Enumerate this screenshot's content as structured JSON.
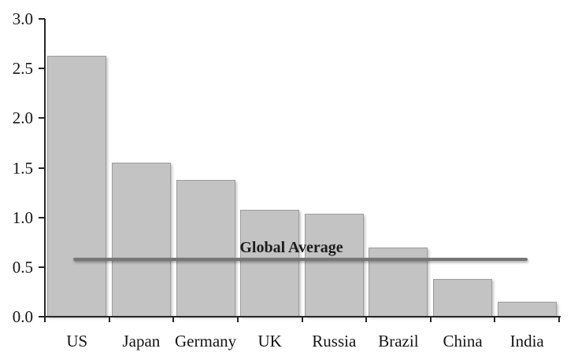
{
  "chart_data": {
    "type": "bar",
    "title": "",
    "xlabel": "",
    "ylabel": "",
    "categories": [
      "US",
      "Japan",
      "Germany",
      "UK",
      "Russia",
      "Brazil",
      "China",
      "India"
    ],
    "values": [
      2.63,
      1.55,
      1.38,
      1.08,
      1.04,
      0.7,
      0.38,
      0.15
    ],
    "ylim": [
      0,
      3.0
    ],
    "yticks": [
      0.0,
      0.5,
      1.0,
      1.5,
      2.0,
      2.5,
      3.0
    ],
    "ytick_labels": [
      "0.0",
      "0.5",
      "1.0",
      "1.5",
      "2.0",
      "2.5",
      "3.0"
    ],
    "grid": false,
    "legend": false,
    "reference_line": {
      "label": "Global Average",
      "value": 0.58
    },
    "colors": {
      "bar_fill": "#c3c3c3",
      "bar_border": "#9b9b9b",
      "reference_line": "#767676",
      "axis": "#262626",
      "text": "#141414",
      "background": "#ffffff"
    }
  }
}
